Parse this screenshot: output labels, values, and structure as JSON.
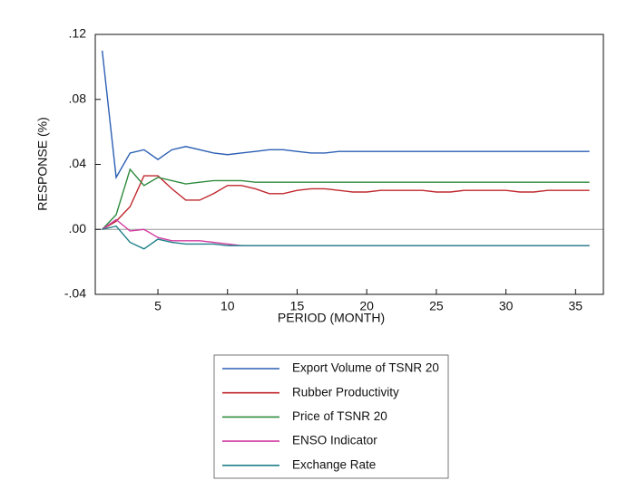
{
  "chart_data": {
    "type": "line",
    "x_label": "PERIOD (MONTH)",
    "y_label": "RESPONSE (%)",
    "x": [
      1,
      2,
      3,
      4,
      5,
      6,
      7,
      8,
      9,
      10,
      11,
      12,
      13,
      14,
      15,
      16,
      17,
      18,
      19,
      20,
      21,
      22,
      23,
      24,
      25,
      26,
      27,
      28,
      29,
      30,
      31,
      32,
      33,
      34,
      35,
      36
    ],
    "xlim": [
      0.5,
      37
    ],
    "xticks": [
      5,
      10,
      15,
      20,
      25,
      30,
      35
    ],
    "ylim": [
      -0.04,
      0.12
    ],
    "yticks": [
      {
        "value": -0.04,
        "label": "-.04"
      },
      {
        "value": 0,
        "label": ".00"
      },
      {
        "value": 0.04,
        "label": ".04"
      },
      {
        "value": 0.08,
        "label": ".08"
      },
      {
        "value": 0.12,
        "label": ".12"
      }
    ],
    "series": [
      {
        "name": "Export Volume of TSNR 20",
        "color": "#2b5fb4",
        "values": [
          0.11,
          0.032,
          0.047,
          0.049,
          0.043,
          0.049,
          0.051,
          0.049,
          0.047,
          0.046,
          0.047,
          0.048,
          0.049,
          0.049,
          0.048,
          0.047,
          0.047,
          0.048,
          0.048,
          0.048,
          0.048,
          0.048,
          0.048,
          0.048,
          0.048,
          0.048,
          0.048,
          0.048,
          0.048,
          0.048,
          0.048,
          0.048,
          0.048,
          0.048,
          0.048,
          0.048
        ]
      },
      {
        "name": "Rubber Productivity",
        "color": "#c0282e",
        "values": [
          0,
          0.005,
          0.014,
          0.033,
          0.033,
          0.025,
          0.018,
          0.018,
          0.022,
          0.027,
          0.027,
          0.025,
          0.022,
          0.022,
          0.024,
          0.025,
          0.025,
          0.024,
          0.023,
          0.023,
          0.024,
          0.024,
          0.024,
          0.024,
          0.023,
          0.023,
          0.024,
          0.024,
          0.024,
          0.024,
          0.023,
          0.023,
          0.024,
          0.024,
          0.024,
          0.024
        ]
      },
      {
        "name": "Price of TSNR 20",
        "color": "#2e8b3e",
        "values": [
          0,
          0.009,
          0.037,
          0.027,
          0.032,
          0.03,
          0.028,
          0.029,
          0.03,
          0.03,
          0.03,
          0.029,
          0.029,
          0.029,
          0.029,
          0.029,
          0.029,
          0.029,
          0.029,
          0.029,
          0.029,
          0.029,
          0.029,
          0.029,
          0.029,
          0.029,
          0.029,
          0.029,
          0.029,
          0.029,
          0.029,
          0.029,
          0.029,
          0.029,
          0.029,
          0.029
        ]
      },
      {
        "name": "ENSO Indicator",
        "color": "#d23ca0",
        "values": [
          0,
          0.006,
          -0.001,
          0.0,
          -0.005,
          -0.007,
          -0.007,
          -0.007,
          -0.008,
          -0.009,
          -0.01,
          -0.01,
          -0.01,
          -0.01,
          -0.01,
          -0.01,
          -0.01,
          -0.01,
          -0.01,
          -0.01,
          -0.01,
          -0.01,
          -0.01,
          -0.01,
          -0.01,
          -0.01,
          -0.01,
          -0.01,
          -0.01,
          -0.01,
          -0.01,
          -0.01,
          -0.01,
          -0.01,
          -0.01,
          -0.01
        ]
      },
      {
        "name": "Exchange Rate",
        "color": "#1f7f8a",
        "values": [
          0,
          0.002,
          -0.008,
          -0.012,
          -0.006,
          -0.008,
          -0.009,
          -0.009,
          -0.009,
          -0.01,
          -0.01,
          -0.01,
          -0.01,
          -0.01,
          -0.01,
          -0.01,
          -0.01,
          -0.01,
          -0.01,
          -0.01,
          -0.01,
          -0.01,
          -0.01,
          -0.01,
          -0.01,
          -0.01,
          -0.01,
          -0.01,
          -0.01,
          -0.01,
          -0.01,
          -0.01,
          -0.01,
          -0.01,
          -0.01,
          -0.01
        ]
      }
    ]
  }
}
